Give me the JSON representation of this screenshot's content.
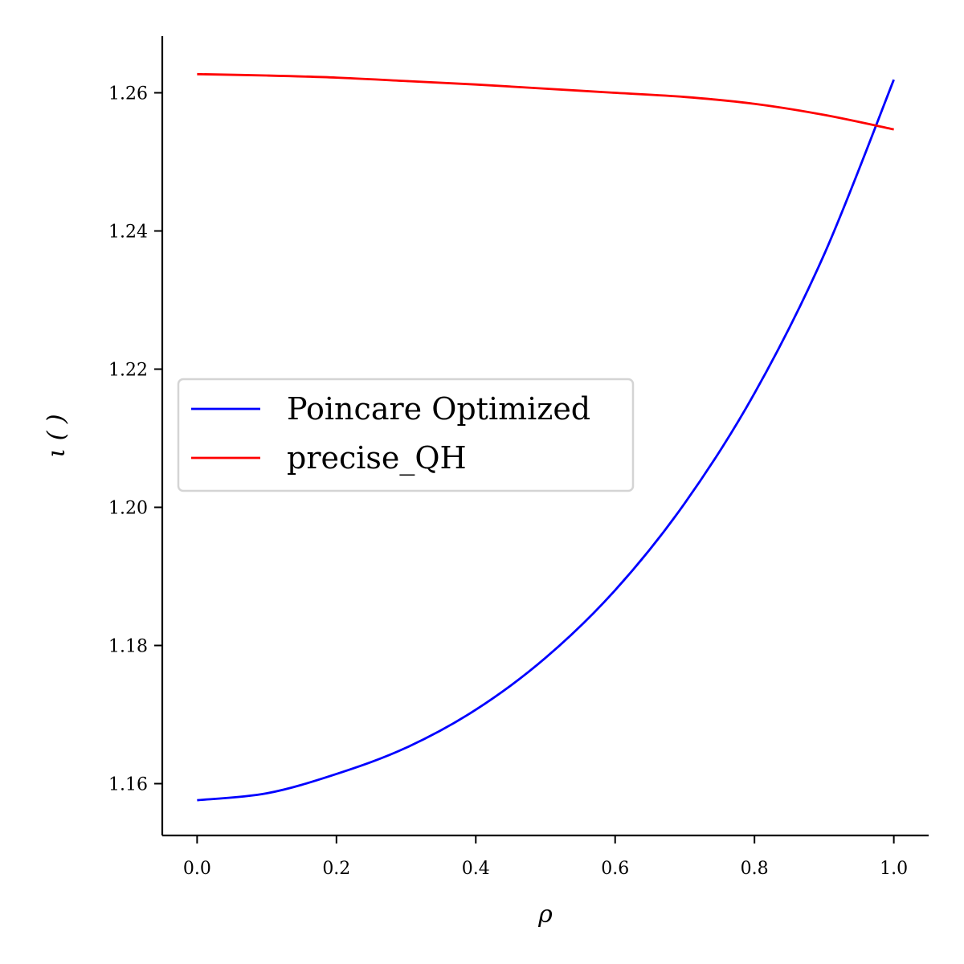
{
  "chart_data": {
    "type": "line",
    "xlabel": "ρ",
    "ylabel": "ι ( )",
    "xlim": [
      -0.05,
      1.05
    ],
    "ylim": [
      1.1525,
      1.2682
    ],
    "x_ticks": [
      0.0,
      0.2,
      0.4,
      0.6,
      0.8,
      1.0
    ],
    "x_tick_labels": [
      "0.0",
      "0.2",
      "0.4",
      "0.6",
      "0.8",
      "1.0"
    ],
    "y_ticks": [
      1.16,
      1.18,
      1.2,
      1.22,
      1.24,
      1.26
    ],
    "y_tick_labels": [
      "1.16",
      "1.18",
      "1.20",
      "1.22",
      "1.24",
      "1.26"
    ],
    "grid": false,
    "legend_position": "center-left",
    "series": [
      {
        "name": "Poincare Optimized",
        "color": "#0000ff",
        "x": [
          0.0,
          0.1,
          0.2,
          0.3,
          0.4,
          0.5,
          0.6,
          0.7,
          0.8,
          0.9,
          1.0
        ],
        "y": [
          1.1576,
          1.1586,
          1.1614,
          1.1652,
          1.1707,
          1.1782,
          1.188,
          1.2006,
          1.2165,
          1.2366,
          1.2619
        ]
      },
      {
        "name": "precise_QH",
        "color": "#ff0000",
        "x": [
          0.0,
          0.1,
          0.2,
          0.3,
          0.4,
          0.5,
          0.6,
          0.7,
          0.8,
          0.9,
          1.0
        ],
        "y": [
          1.2627,
          1.2625,
          1.2622,
          1.2617,
          1.2612,
          1.2606,
          1.26,
          1.2594,
          1.2584,
          1.2568,
          1.2547
        ]
      }
    ]
  }
}
